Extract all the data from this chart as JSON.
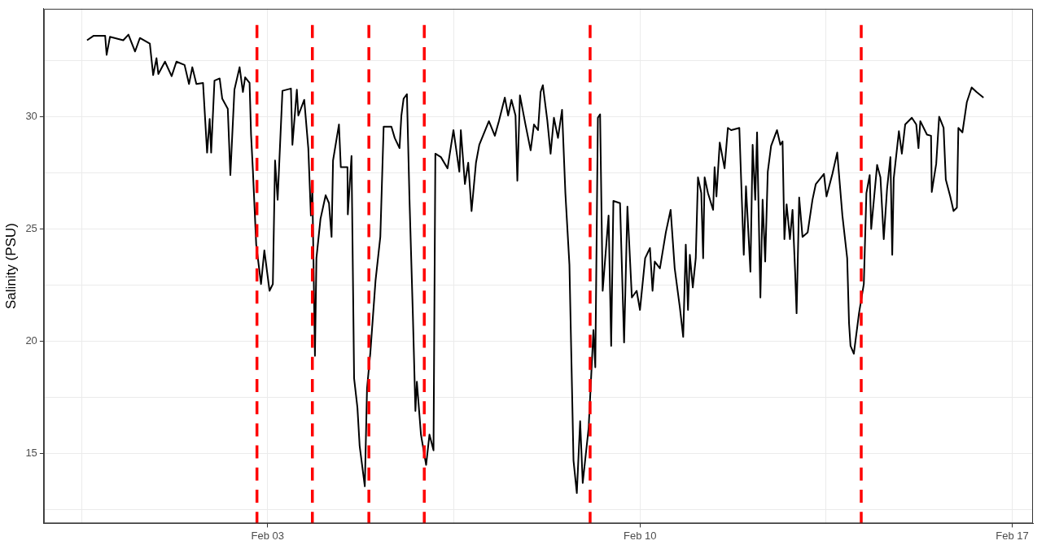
{
  "chart_data": {
    "type": "line",
    "ylabel": "Salinity (PSU)",
    "x": [
      "--01-30T14:30",
      "--01-30T17:30",
      "--01-30T22:40",
      "--01-30T23:20",
      "--01-31T00:50",
      "--01-31T06:50",
      "--01-31T09:10",
      "--01-31T12:10",
      "--01-31T14:20",
      "--01-31T18:50",
      "--01-31T20:20",
      "--01-31T21:50",
      "--01-31T22:40",
      "--02-01T01:40",
      "--02-01T04:40",
      "--02-01T06:50",
      "--02-01T10:30",
      "--02-01T12:30",
      "--02-01T14:00",
      "--02-01T15:50",
      "--02-01T18:50",
      "--02-01T20:40",
      "--02-01T21:50",
      "--02-01T22:30",
      "--02-02T00:00",
      "--02-02T02:20",
      "--02-02T03:30",
      "--02-02T06:00",
      "--02-02T07:10",
      "--02-02T09:00",
      "--02-02T11:20",
      "--02-02T12:50",
      "--02-02T13:50",
      "--02-02T15:50",
      "--02-02T16:30",
      "--02-02T17:20",
      "--02-02T18:50",
      "--02-02T21:00",
      "--02-02T22:30",
      "--02-03T00:50",
      "--02-03T02:20",
      "--02-03T03:20",
      "--02-03T04:30",
      "--02-03T06:40",
      "--02-03T10:30",
      "--02-03T11:10",
      "--02-03T13:10",
      "--02-03T13:50",
      "--02-03T16:30",
      "--02-03T18:20",
      "--02-03T19:30",
      "--02-03T20:10",
      "--02-03T21:20",
      "--02-03T22:00",
      "--02-03T23:50",
      "--02-04T02:10",
      "--02-04T03:40",
      "--02-04T04:50",
      "--02-04T05:30",
      "--02-04T08:10",
      "--02-04T09:00",
      "--02-04T12:00",
      "--02-04T12:10",
      "--02-04T13:50",
      "--02-04T15:00",
      "--02-04T16:30",
      "--02-04T17:30",
      "--02-04T19:50",
      "--02-04T20:50",
      "--02-04T22:20",
      "--02-05T00:40",
      "--02-05T02:50",
      "--02-05T04:20",
      "--02-05T07:50",
      "--02-05T09:20",
      "--02-05T11:30",
      "--02-05T12:20",
      "--02-05T13:20",
      "--02-05T14:50",
      "--02-05T16:00",
      "--02-05T17:30",
      "--02-05T18:40",
      "--02-05T19:20",
      "--02-05T21:10",
      "--02-05T23:30",
      "--02-06T01:00",
      "--02-06T02:50",
      "--02-06T03:40",
      "--02-06T06:10",
      "--02-06T09:10",
      "--02-06T11:50",
      "--02-06T14:30",
      "--02-06T15:10",
      "--02-06T17:00",
      "--02-06T18:30",
      "--02-06T20:00",
      "--02-06T22:00",
      "--02-06T23:30",
      "--02-07T03:50",
      "--02-07T06:30",
      "--02-07T08:20",
      "--02-07T11:00",
      "--02-07T12:30",
      "--02-07T14:00",
      "--02-07T15:50",
      "--02-07T16:40",
      "--02-07T17:50",
      "--02-07T20:20",
      "--02-07T22:40",
      "--02-08T00:10",
      "--02-08T02:00",
      "--02-08T03:10",
      "--02-08T04:10",
      "--02-08T06:10",
      "--02-08T07:40",
      "--02-08T09:10",
      "--02-08T11:00",
      "--02-08T12:50",
      "--02-08T14:20",
      "--02-08T16:10",
      "--02-08T18:00",
      "--02-08T19:30",
      "--02-08T21:00",
      "--02-08T22:10",
      "--02-09T00:50",
      "--02-09T03:00",
      "--02-09T03:50",
      "--02-09T05:00",
      "--02-09T06:00",
      "--02-09T07:10",
      "--02-09T09:50",
      "--02-09T11:00",
      "--02-09T12:00",
      "--02-09T15:00",
      "--02-09T16:50",
      "--02-09T18:20",
      "--02-09T20:20",
      "--02-09T22:30",
      "--02-10T00:00",
      "--02-10T02:20",
      "--02-10T04:30",
      "--02-10T05:40",
      "--02-10T06:40",
      "--02-10T09:00",
      "--02-10T11:40",
      "--02-10T13:50",
      "--02-10T15:40",
      "--02-10T18:00",
      "--02-10T19:30",
      "--02-10T20:40",
      "--02-10T21:40",
      "--02-10T22:30",
      "--02-10T23:50",
      "--02-11T01:10",
      "--02-11T02:10",
      "--02-11T03:40",
      "--02-11T04:30",
      "--02-11T05:10",
      "--02-11T06:40",
      "--02-11T09:00",
      "--02-11T09:40",
      "--02-11T10:30",
      "--02-11T12:00",
      "--02-11T14:10",
      "--02-11T15:40",
      "--02-11T17:10",
      "--02-11T20:50",
      "--02-11T22:50",
      "--02-11T23:50",
      "--02-12T01:50",
      "--02-12T02:50",
      "--02-12T04:00",
      "--02-12T04:50",
      "--02-12T06:20",
      "--02-12T07:20",
      "--02-12T08:30",
      "--02-12T09:40",
      "--02-12T11:10",
      "--02-12T13:50",
      "--02-12T15:20",
      "--02-12T16:20",
      "--02-12T17:10",
      "--02-12T18:10",
      "--02-12T19:40",
      "--02-12T20:50",
      "--02-12T22:00",
      "--02-12T22:40",
      "--02-12T23:50",
      "--02-13T01:20",
      "--02-13T03:40",
      "--02-13T05:50",
      "--02-13T07:20",
      "--02-13T11:00",
      "--02-13T12:10",
      "--02-13T14:50",
      "--02-13T17:00",
      "--02-13T19:20",
      "--02-13T21:30",
      "--02-13T22:20",
      "--02-13T23:00",
      "--02-14T00:30",
      "--02-14T02:50",
      "--02-14T05:00",
      "--02-14T06:10",
      "--02-14T07:40",
      "--02-14T08:20",
      "--02-14T11:00",
      "--02-14T12:30",
      "--02-14T14:00",
      "--02-14T15:30",
      "--02-14T17:00",
      "--02-14T17:50",
      "--02-14T18:30",
      "--02-14T20:50",
      "--02-14T22:10",
      "--02-14T23:40",
      "--02-15T02:40",
      "--02-15T04:40",
      "--02-15T05:40",
      "--02-15T06:30",
      "--02-15T09:30",
      "--02-15T11:20",
      "--02-15T11:40",
      "--02-15T13:40",
      "--02-15T15:00",
      "--02-15T17:00",
      "--02-15T18:00",
      "--02-15T20:00",
      "--02-15T21:30",
      "--02-15T23:00",
      "--02-15T23:40",
      "--02-16T01:30",
      "--02-16T03:30",
      "--02-16T05:40",
      "--02-16T07:50",
      "--02-16T11:00"
    ],
    "series": [
      {
        "color": "#000000",
        "values": [
          33.4,
          33.6,
          33.6,
          32.75,
          33.55,
          33.4,
          33.65,
          32.9,
          33.5,
          33.25,
          31.85,
          32.6,
          31.9,
          32.45,
          31.8,
          32.45,
          32.3,
          31.45,
          32.2,
          31.45,
          31.5,
          28.4,
          29.9,
          28.4,
          31.6,
          31.7,
          30.8,
          30.35,
          27.4,
          31.2,
          32.2,
          31.1,
          31.75,
          31.5,
          29.2,
          27.6,
          24.3,
          22.55,
          24.05,
          22.25,
          22.55,
          28.05,
          26.3,
          31.15,
          31.25,
          28.75,
          31.2,
          30.05,
          30.75,
          28.6,
          25.6,
          26.75,
          19.35,
          23.7,
          25.45,
          26.5,
          26.15,
          24.65,
          28.05,
          29.65,
          27.75,
          27.75,
          25.65,
          28.25,
          18.35,
          17.05,
          15.35,
          13.55,
          17.9,
          19.5,
          22.7,
          24.65,
          29.55,
          29.55,
          29.05,
          28.6,
          30.05,
          30.8,
          31.0,
          26.3,
          21.25,
          16.9,
          18.2,
          15.85,
          14.5,
          15.85,
          15.15,
          28.35,
          28.2,
          27.7,
          29.4,
          27.55,
          29.4,
          27.0,
          27.95,
          25.8,
          27.95,
          28.75,
          29.8,
          29.15,
          29.8,
          30.85,
          30.05,
          30.75,
          30.05,
          27.15,
          30.95,
          29.65,
          28.5,
          29.65,
          29.4,
          31.1,
          31.4,
          29.85,
          28.35,
          29.95,
          29.05,
          30.3,
          26.6,
          23.4,
          14.7,
          13.25,
          16.45,
          13.7,
          16.15,
          20.5,
          18.85,
          29.95,
          30.1,
          22.25,
          25.6,
          19.8,
          26.25,
          26.15,
          19.95,
          26.0,
          21.95,
          22.25,
          21.4,
          23.7,
          24.15,
          22.25,
          23.55,
          23.25,
          24.85,
          25.85,
          23.25,
          21.5,
          20.2,
          24.3,
          21.4,
          23.85,
          22.4,
          23.7,
          27.3,
          26.6,
          23.7,
          27.3,
          26.6,
          25.85,
          27.75,
          26.45,
          28.85,
          27.7,
          29.5,
          29.4,
          29.5,
          23.85,
          26.9,
          23.1,
          28.75,
          26.3,
          29.3,
          21.95,
          26.3,
          23.55,
          27.55,
          28.7,
          29.4,
          28.75,
          28.9,
          24.55,
          26.1,
          24.55,
          25.85,
          23.1,
          21.25,
          26.4,
          24.65,
          24.85,
          26.3,
          27.0,
          27.45,
          26.45,
          27.45,
          28.4,
          25.6,
          23.7,
          20.8,
          19.8,
          19.45,
          21.25,
          22.55,
          26.6,
          27.4,
          25.0,
          27.85,
          27.3,
          24.55,
          26.8,
          28.2,
          23.85,
          27.25,
          29.35,
          28.35,
          29.65,
          29.95,
          29.65,
          28.6,
          29.8,
          29.2,
          29.15,
          26.65,
          27.9,
          30.0,
          29.5,
          27.2,
          26.45,
          25.8,
          25.95,
          29.5,
          29.3,
          30.65,
          31.3,
          31.1,
          30.85
        ]
      }
    ],
    "xlim": [
      "--01-29T19:00",
      "--02-17T09:20"
    ],
    "xticks": [
      {
        "value": "--01-30T12:00",
        "label": null
      },
      {
        "value": "--02-03",
        "label": "Feb 03"
      },
      {
        "value": "--02-06T12:00",
        "label": null
      },
      {
        "value": "--02-10",
        "label": "Feb 10"
      },
      {
        "value": "--02-13T12:00",
        "label": null
      },
      {
        "value": "--02-17",
        "label": "Feb 17"
      }
    ],
    "ylim": [
      11.9,
      34.8
    ],
    "yticks": [
      {
        "value": 12.5,
        "label": null
      },
      15,
      {
        "value": 17.5,
        "label": null
      },
      20,
      {
        "value": 22.5,
        "label": null
      },
      25,
      {
        "value": 27.5,
        "label": null
      },
      30,
      {
        "value": 32.5,
        "label": null
      }
    ],
    "ref_lines": [
      {
        "axis": "x",
        "value": "--02-02T19:10",
        "color": "#ff0000",
        "line_style": "dashed"
      },
      {
        "axis": "x",
        "value": "--02-03T20:10",
        "color": "#ff0000",
        "line_style": "dashed"
      },
      {
        "axis": "x",
        "value": "--02-04T21:40",
        "color": "#ff0000",
        "line_style": "dashed"
      },
      {
        "axis": "x",
        "value": "--02-05T22:40",
        "color": "#ff0000",
        "line_style": "dashed"
      },
      {
        "axis": "x",
        "value": "--02-09T01:30",
        "color": "#ff0000",
        "line_style": "dashed"
      },
      {
        "axis": "x",
        "value": "--02-14T03:50",
        "color": "#ff0000",
        "line_style": "dashed"
      }
    ],
    "grid": true,
    "legend": false,
    "marker": "none",
    "line_style": "solid"
  }
}
